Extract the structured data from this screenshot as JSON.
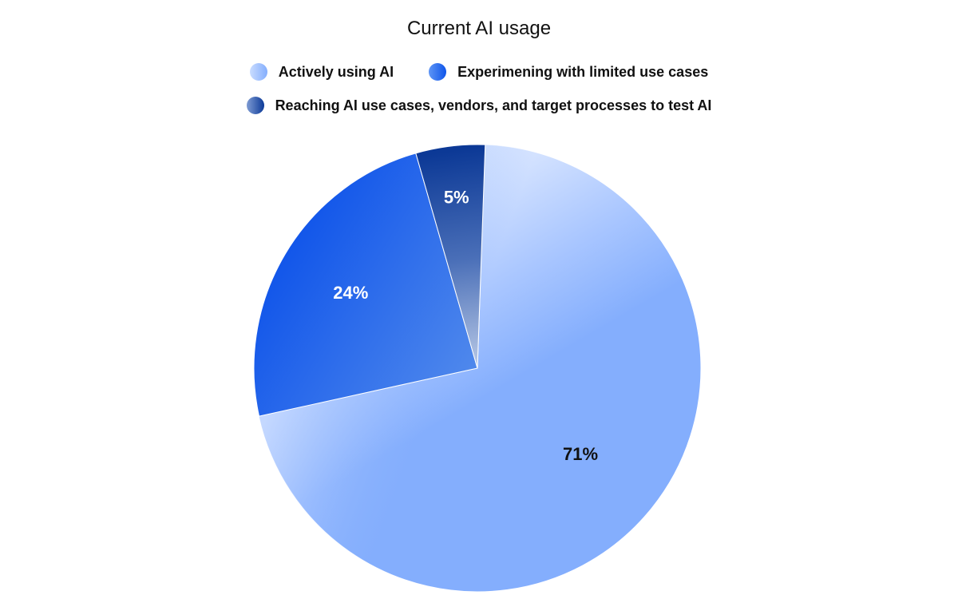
{
  "chart_data": {
    "type": "pie",
    "title": "Current AI usage",
    "legend_position": "top",
    "slices": [
      {
        "name": "Actively using AI",
        "value": 71,
        "label": "71%"
      },
      {
        "name": "Experimening with limited use cases",
        "value": 24,
        "label": "24%"
      },
      {
        "name": "Reaching AI use cases, vendors, and target processes to test AI",
        "value": 5,
        "label": "5%"
      }
    ],
    "colors": [
      "#84aefd",
      "#1556ea",
      "#143d96"
    ],
    "label_colors": [
      "#111111",
      "#ffffff",
      "#ffffff"
    ]
  }
}
